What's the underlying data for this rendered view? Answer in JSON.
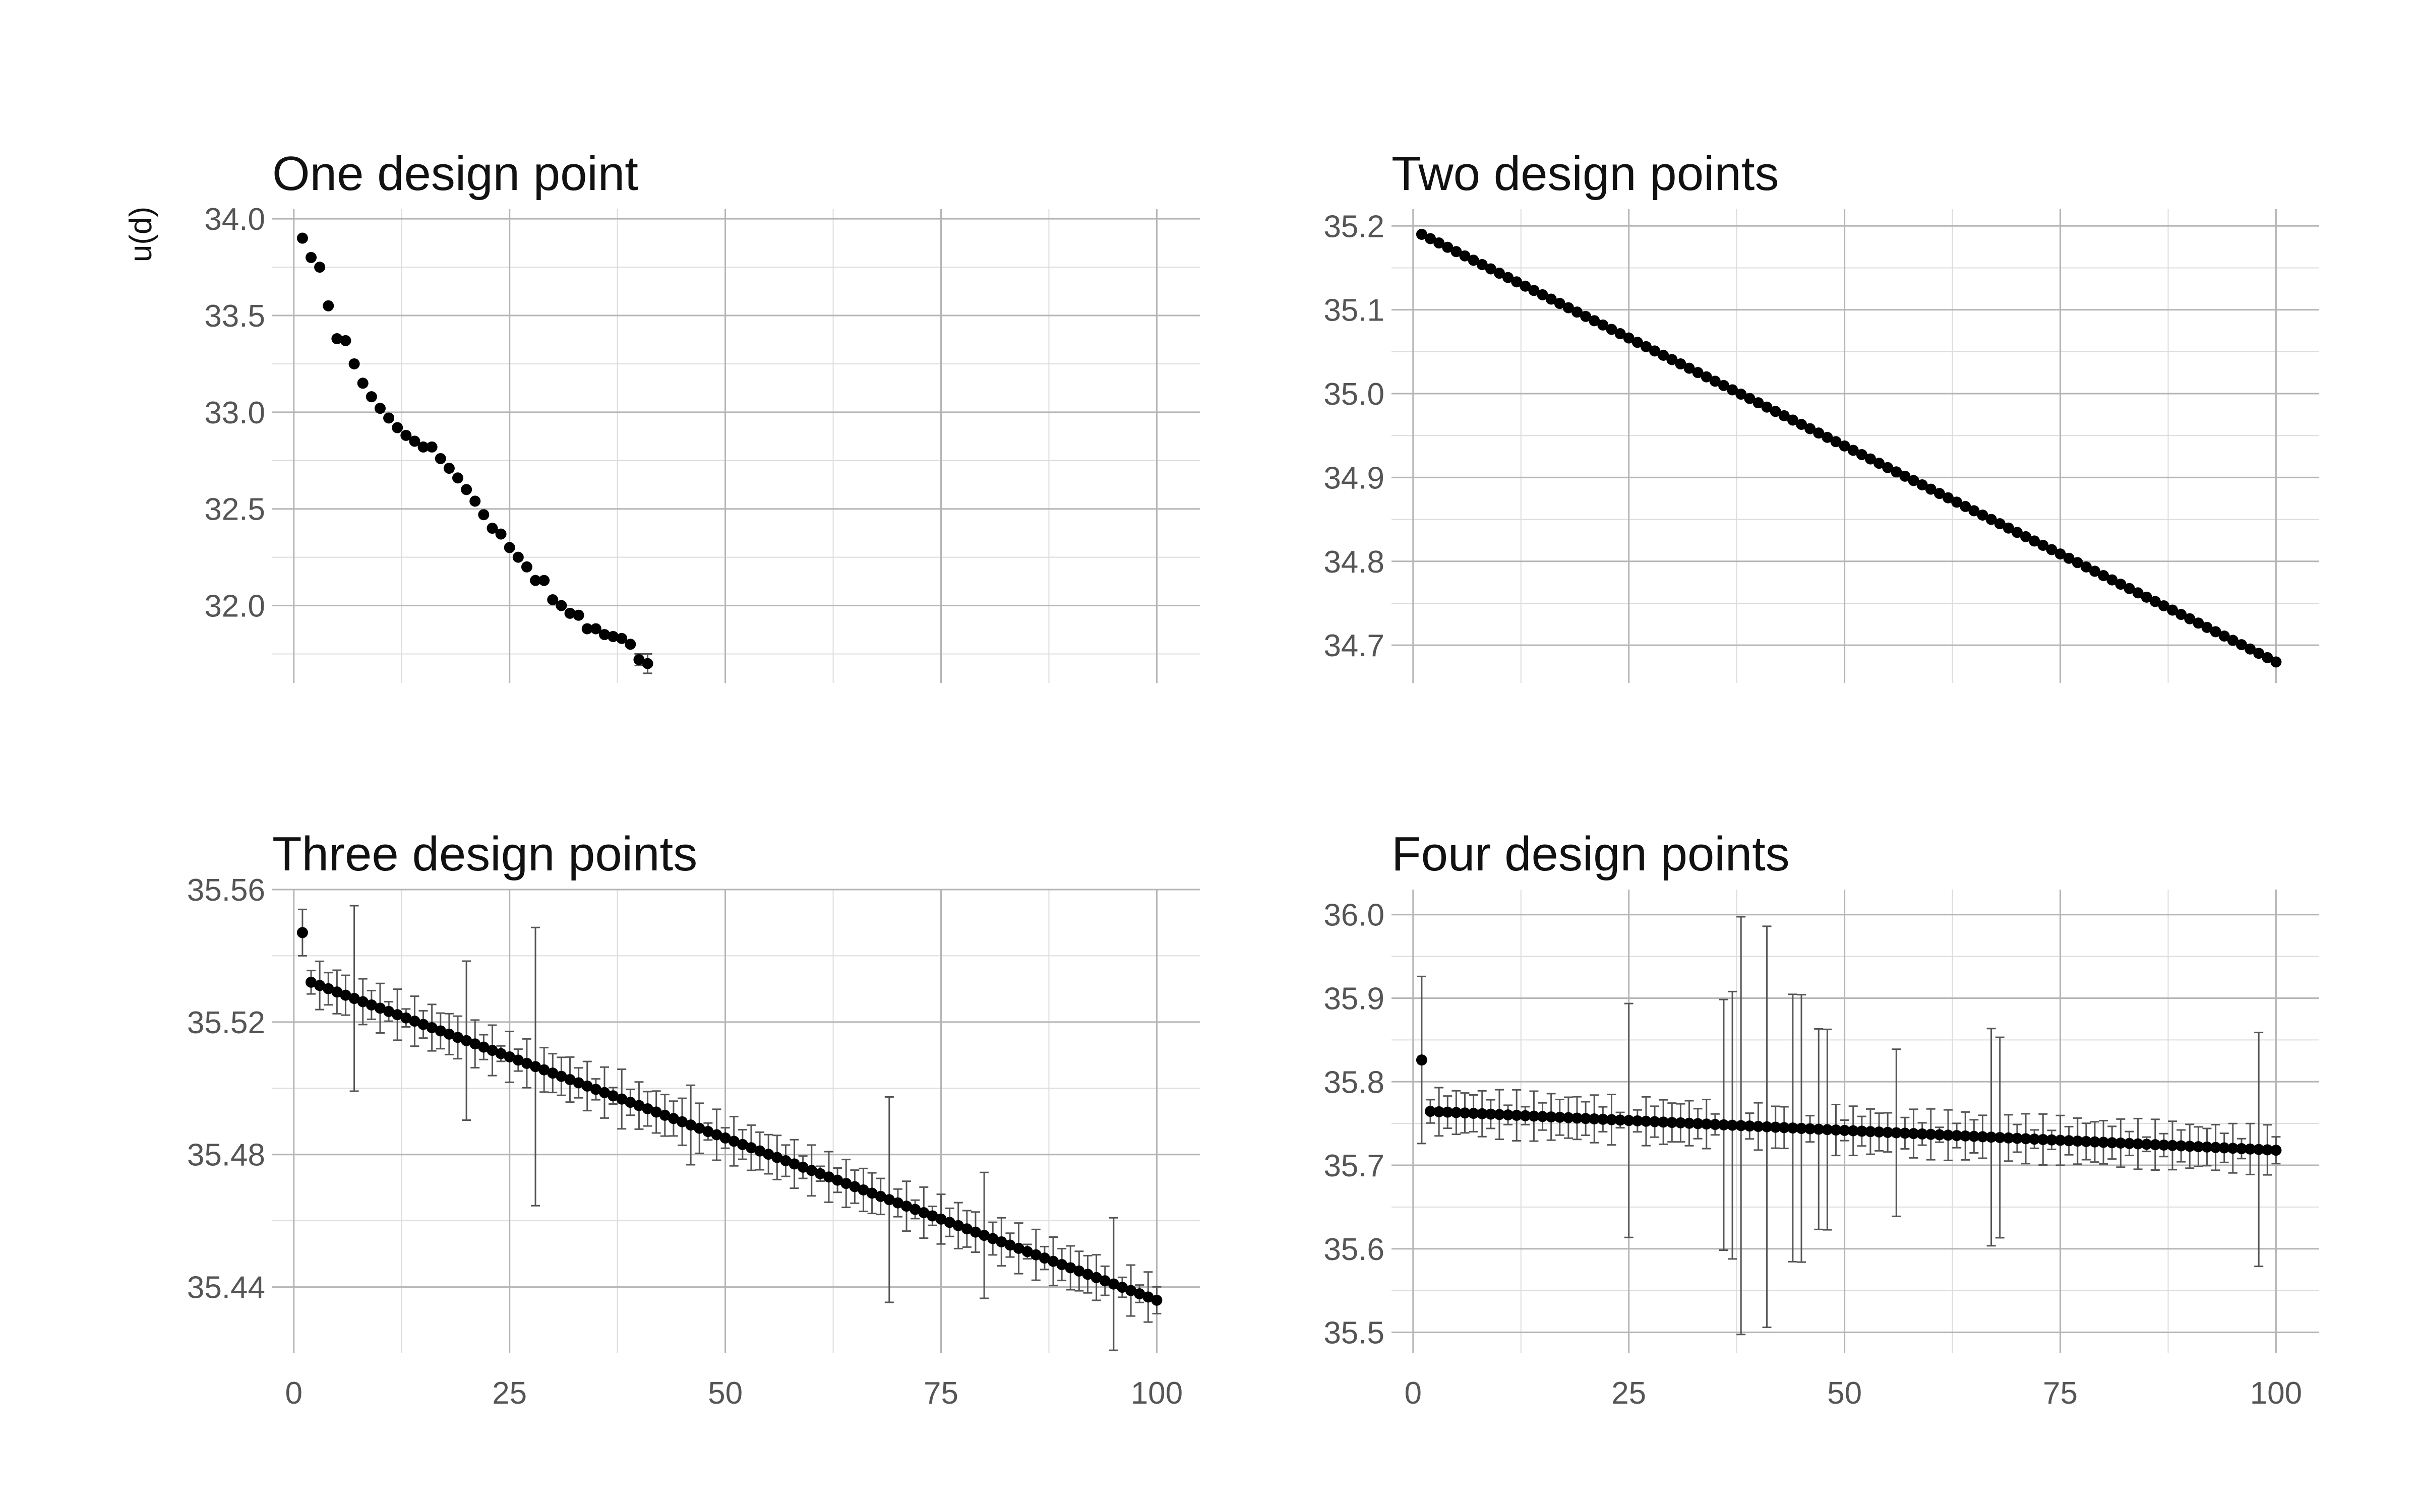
{
  "ylabel": "u(d)",
  "chart_data": [
    {
      "type": "scatter",
      "title": "One design point",
      "xlim": [
        -2.5,
        105
      ],
      "ylim": [
        31.6,
        34.05
      ],
      "x_ticks": [
        0,
        25,
        50,
        75,
        100
      ],
      "y_ticks": [
        32.0,
        32.5,
        33.0,
        33.5,
        34.0
      ],
      "y_tick_labels": [
        "32.0",
        "32.5",
        "33.0",
        "33.5",
        "34.0"
      ],
      "show_x_tick_labels": false,
      "x": [
        1,
        2,
        3,
        4,
        5,
        6,
        7,
        8,
        9,
        10,
        11,
        12,
        13,
        14,
        15,
        16,
        17,
        18,
        19,
        20,
        21,
        22,
        23,
        24,
        25,
        26,
        27,
        28,
        29,
        30,
        31,
        32,
        33,
        34,
        35,
        36,
        37,
        38,
        39,
        40,
        41
      ],
      "y": [
        33.9,
        33.8,
        33.75,
        33.55,
        33.38,
        33.37,
        33.25,
        33.15,
        33.08,
        33.02,
        32.97,
        32.92,
        32.88,
        32.85,
        32.82,
        32.82,
        32.76,
        32.71,
        32.66,
        32.6,
        32.54,
        32.47,
        32.4,
        32.37,
        32.3,
        32.25,
        32.2,
        32.13,
        32.13,
        32.03,
        32.0,
        31.96,
        31.95,
        31.88,
        31.88,
        31.85,
        31.84,
        31.83,
        31.8,
        31.72,
        31.7
      ],
      "err": [
        0,
        0,
        0,
        0,
        0,
        0,
        0,
        0,
        0,
        0,
        0,
        0,
        0,
        0,
        0,
        0,
        0,
        0,
        0,
        0,
        0,
        0,
        0,
        0,
        0,
        0,
        0,
        0,
        0,
        0,
        0,
        0,
        0,
        0,
        0,
        0,
        0,
        0,
        0,
        0.03,
        0.05
      ]
    },
    {
      "type": "scatter",
      "title": "Two design points",
      "xlim": [
        -2.5,
        105
      ],
      "ylim": [
        34.655,
        35.22
      ],
      "x_ticks": [
        0,
        25,
        50,
        75,
        100
      ],
      "y_ticks": [
        34.7,
        34.8,
        34.9,
        35.0,
        35.1,
        35.2
      ],
      "y_tick_labels": [
        "34.7",
        "34.8",
        "34.9",
        "35.0",
        "35.1",
        "35.2"
      ],
      "show_x_tick_labels": false,
      "x_start": 1,
      "x_step": 1,
      "y_start": 35.19,
      "y_end": 34.68
    },
    {
      "type": "scatter",
      "title": "Three design points",
      "xlim": [
        -2.5,
        105
      ],
      "ylim": [
        35.42,
        35.56
      ],
      "x_ticks": [
        0,
        25,
        50,
        75,
        100
      ],
      "y_ticks": [
        35.44,
        35.48,
        35.52,
        35.56
      ],
      "y_tick_labels": [
        "35.44",
        "35.48",
        "35.52",
        "35.56"
      ],
      "show_x_tick_labels": true,
      "x_start": 1,
      "x_step": 1,
      "y_start": 35.533,
      "y_end": 35.436,
      "first_y": 35.547,
      "large_errors": [
        [
          1,
          0.007
        ],
        [
          7,
          0.028
        ],
        [
          20,
          0.024
        ],
        [
          28,
          0.042
        ],
        [
          38,
          0.009
        ],
        [
          46,
          0.012
        ],
        [
          69,
          0.031
        ],
        [
          80,
          0.019
        ],
        [
          95,
          0.02
        ]
      ]
    },
    {
      "type": "scatter",
      "title": "Four design points",
      "xlim": [
        -2.5,
        105
      ],
      "ylim": [
        35.475,
        36.03
      ],
      "x_ticks": [
        0,
        25,
        50,
        75,
        100
      ],
      "y_ticks": [
        35.5,
        35.6,
        35.7,
        35.8,
        35.9,
        36.0
      ],
      "y_tick_labels": [
        "35.5",
        "35.6",
        "35.7",
        "35.8",
        "35.9",
        "36.0"
      ],
      "show_x_tick_labels": true,
      "x_start": 1,
      "x_step": 1,
      "y_start": 35.765,
      "y_end": 35.718,
      "first_y": 35.826,
      "large_errors": [
        [
          1,
          0.1
        ],
        [
          25,
          0.14
        ],
        [
          36,
          0.15
        ],
        [
          37,
          0.16
        ],
        [
          38,
          0.25
        ],
        [
          41,
          0.24
        ],
        [
          44,
          0.16
        ],
        [
          45,
          0.16
        ],
        [
          47,
          0.12
        ],
        [
          48,
          0.12
        ],
        [
          56,
          0.1
        ],
        [
          67,
          0.13
        ],
        [
          68,
          0.12
        ],
        [
          98,
          0.14
        ]
      ]
    }
  ]
}
